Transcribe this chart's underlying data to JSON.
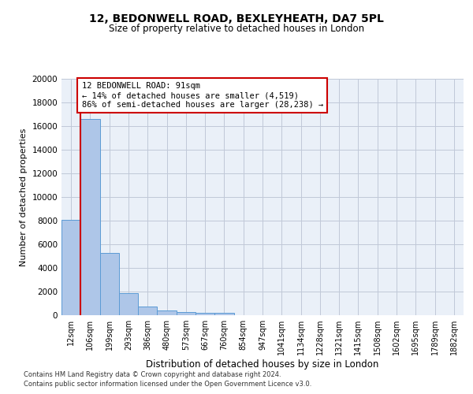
{
  "title1": "12, BEDONWELL ROAD, BEXLEYHEATH, DA7 5PL",
  "title2": "Size of property relative to detached houses in London",
  "xlabel": "Distribution of detached houses by size in London",
  "ylabel": "Number of detached properties",
  "categories": [
    "12sqm",
    "106sqm",
    "199sqm",
    "293sqm",
    "386sqm",
    "480sqm",
    "573sqm",
    "667sqm",
    "760sqm",
    "854sqm",
    "947sqm",
    "1041sqm",
    "1134sqm",
    "1228sqm",
    "1321sqm",
    "1415sqm",
    "1508sqm",
    "1602sqm",
    "1695sqm",
    "1789sqm",
    "1882sqm"
  ],
  "bar_values": [
    8100,
    16600,
    5300,
    1850,
    750,
    380,
    280,
    210,
    170,
    0,
    0,
    0,
    0,
    0,
    0,
    0,
    0,
    0,
    0,
    0,
    0
  ],
  "bar_color": "#aec6e8",
  "bar_edge_color": "#5b9bd5",
  "vline_color": "#cc0000",
  "annotation_text": "12 BEDONWELL ROAD: 91sqm\n← 14% of detached houses are smaller (4,519)\n86% of semi-detached houses are larger (28,238) →",
  "annotation_box_color": "#ffffff",
  "annotation_box_edge_color": "#cc0000",
  "ylim": [
    0,
    20000
  ],
  "yticks": [
    0,
    2000,
    4000,
    6000,
    8000,
    10000,
    12000,
    14000,
    16000,
    18000,
    20000
  ],
  "grid_color": "#c0c8d8",
  "background_color": "#eaf0f8",
  "footer1": "Contains HM Land Registry data © Crown copyright and database right 2024.",
  "footer2": "Contains public sector information licensed under the Open Government Licence v3.0."
}
